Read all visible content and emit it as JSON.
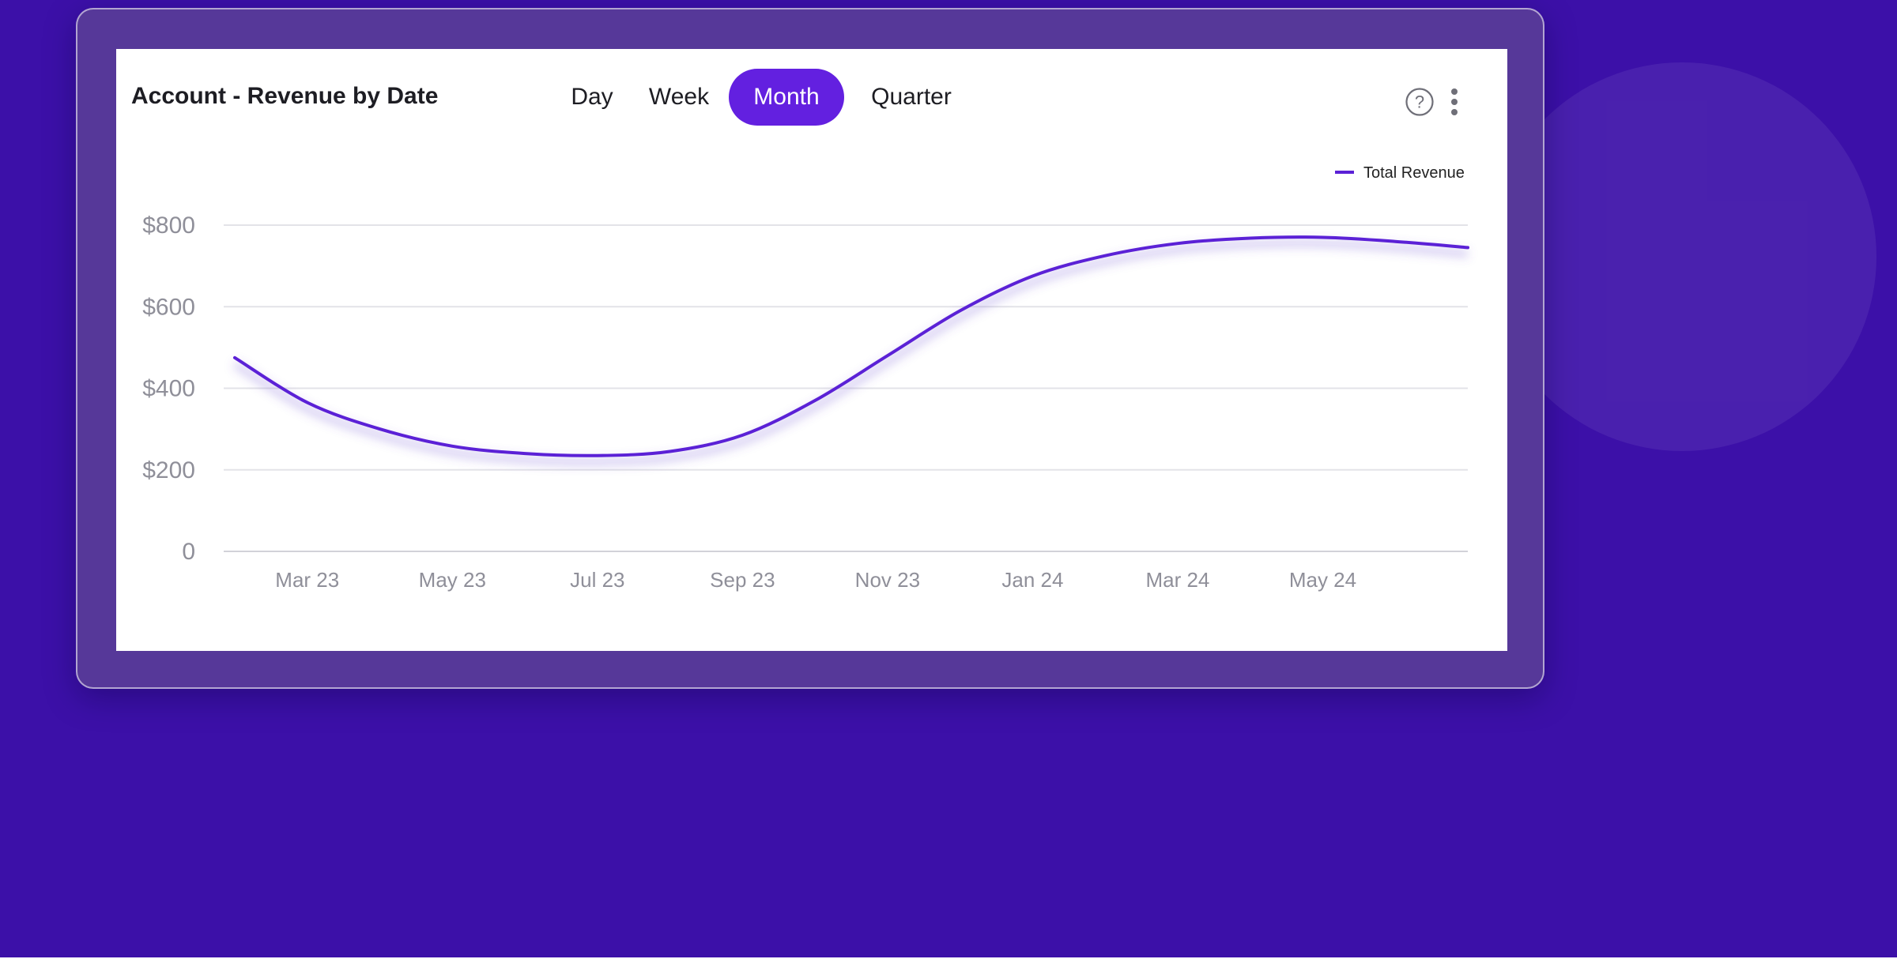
{
  "card": {
    "title": "Account - Revenue by Date",
    "tabs": [
      {
        "label": "Day",
        "active": false
      },
      {
        "label": "Week",
        "active": false
      },
      {
        "label": "Month",
        "active": true
      },
      {
        "label": "Quarter",
        "active": false
      }
    ],
    "icons": [
      "help-icon",
      "more-vertical-icon"
    ]
  },
  "colors": {
    "background": "#3c10a8",
    "accent": "#6320e0",
    "series_line": "#5b21d6"
  },
  "chart_data": {
    "type": "line",
    "title": "Account - Revenue by Date",
    "xlabel": "",
    "ylabel": "",
    "x_ticks": [
      "Mar 23",
      "May 23",
      "Jul 23",
      "Sep 23",
      "Nov 23",
      "Jan 24",
      "Mar 24",
      "May 24"
    ],
    "y_ticks": [
      "0",
      "$200",
      "$400",
      "$600",
      "$800"
    ],
    "ylim": [
      0,
      800
    ],
    "grid": true,
    "legend": "top-right",
    "series": [
      {
        "name": "Total Revenue",
        "x": [
          "2023-02",
          "2023-03",
          "2023-04",
          "2023-05",
          "2023-06",
          "2023-07",
          "2023-08",
          "2023-09",
          "2023-10",
          "2023-11",
          "2023-12",
          "2024-01",
          "2024-02",
          "2024-03",
          "2024-04",
          "2024-05",
          "2024-06",
          "2024-07"
        ],
        "values": [
          475,
          365,
          300,
          258,
          240,
          235,
          245,
          285,
          370,
          480,
          590,
          675,
          725,
          755,
          768,
          770,
          760,
          745
        ]
      }
    ]
  }
}
